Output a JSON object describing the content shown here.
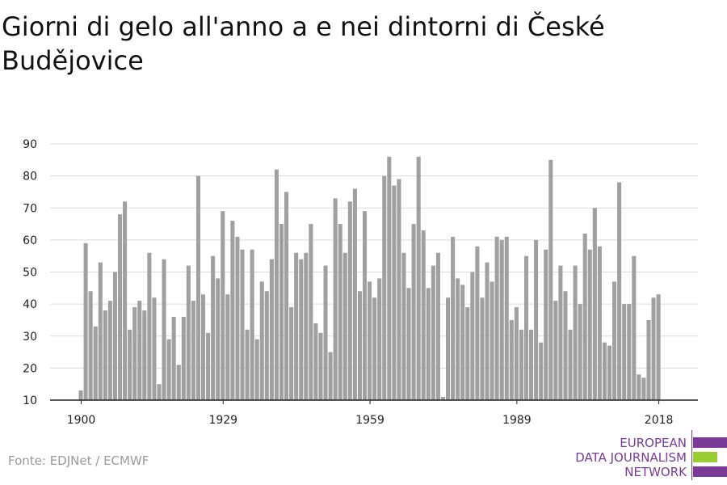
{
  "title": "Giorni di gelo all'anno a e nei dintorni di České Budějovice",
  "source": "Fonte: EDJNet / ECMWF",
  "logo": {
    "lines": [
      "EUROPEAN",
      "DATA JOURNALISM",
      "NETWORK"
    ],
    "colors": {
      "purple": "#7a3b96",
      "green": "#9acd32"
    }
  },
  "colors": {
    "bar": "#a0a0a0",
    "grid": "#dcdcdc",
    "axis": "#222222"
  },
  "chart_data": {
    "type": "bar",
    "title": "Giorni di gelo all'anno a e nei dintorni di České Budějovice",
    "xlabel": "",
    "ylabel": "",
    "ylim": [
      10,
      90
    ],
    "yticks": [
      10,
      20,
      30,
      40,
      50,
      60,
      70,
      80,
      90
    ],
    "xticks": [
      1900,
      1929,
      1959,
      1989,
      2018
    ],
    "grid": true,
    "x_start": 1900,
    "values": [
      13,
      59,
      44,
      33,
      53,
      38,
      41,
      50,
      68,
      72,
      32,
      39,
      41,
      38,
      56,
      42,
      15,
      54,
      29,
      36,
      21,
      36,
      52,
      41,
      80,
      43,
      31,
      55,
      48,
      69,
      43,
      66,
      61,
      57,
      32,
      57,
      29,
      47,
      44,
      54,
      82,
      65,
      75,
      39,
      56,
      54,
      56,
      65,
      34,
      31,
      52,
      25,
      73,
      65,
      56,
      72,
      76,
      44,
      69,
      47,
      42,
      48,
      80,
      86,
      77,
      79,
      56,
      45,
      65,
      86,
      63,
      45,
      52,
      56,
      11,
      42,
      61,
      48,
      46,
      39,
      50,
      58,
      42,
      53,
      47,
      61,
      60,
      61,
      35,
      39,
      32,
      55,
      32,
      60,
      28,
      57,
      85,
      41,
      52,
      44,
      32,
      52,
      40,
      62,
      57,
      70,
      58,
      28,
      27,
      47,
      78,
      40,
      40,
      55,
      18,
      17,
      35,
      42,
      43
    ]
  }
}
